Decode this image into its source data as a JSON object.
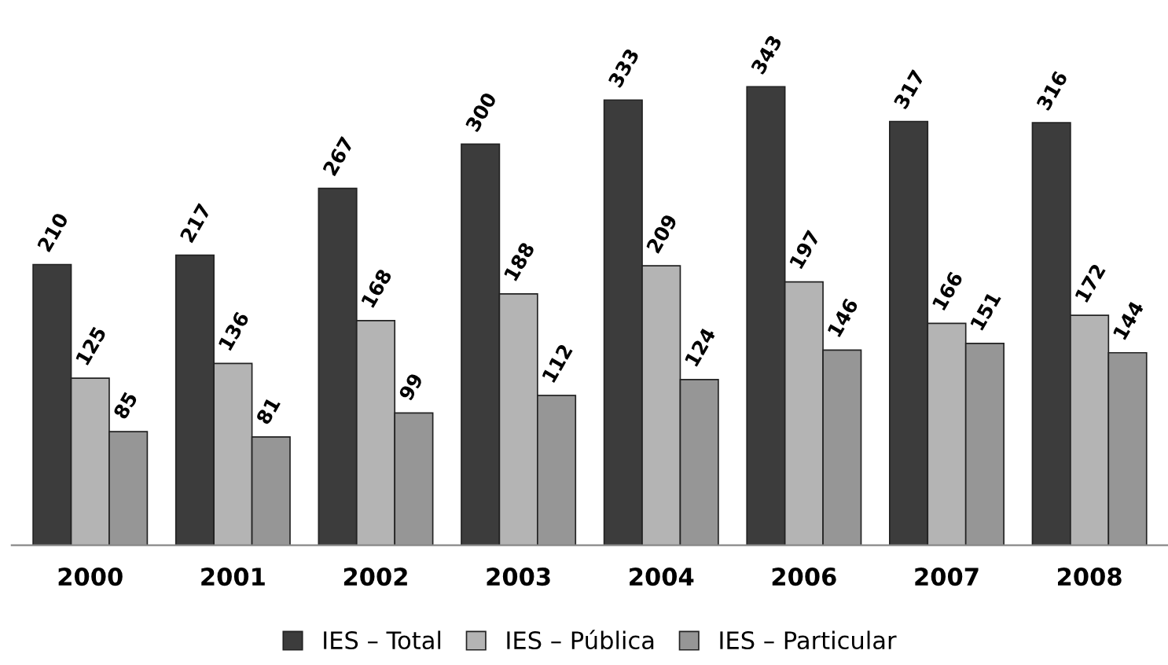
{
  "chart_data": {
    "type": "bar",
    "categories": [
      "2000",
      "2001",
      "2002",
      "2003",
      "2004",
      "2006",
      "2007",
      "2008"
    ],
    "series": [
      {
        "name": "IES – Total",
        "color": "#3c3c3c",
        "values": [
          210,
          217,
          267,
          300,
          333,
          343,
          317,
          316
        ]
      },
      {
        "name": "IES – Pública",
        "color": "#b4b4b4",
        "values": [
          125,
          136,
          168,
          188,
          209,
          197,
          166,
          172
        ]
      },
      {
        "name": "IES – Particular",
        "color": "#969696",
        "values": [
          85,
          81,
          99,
          112,
          124,
          146,
          151,
          144
        ]
      }
    ],
    "data_labels": true,
    "legend": "bottom",
    "grid": false
  }
}
